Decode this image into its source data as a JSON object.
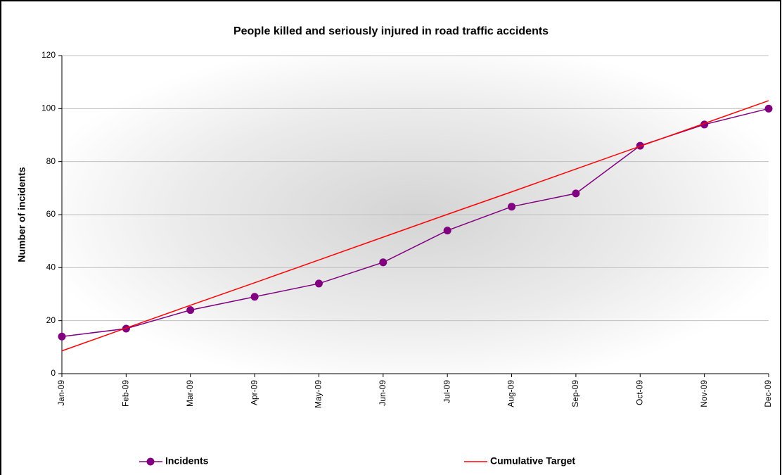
{
  "chart_data": {
    "type": "line",
    "title": "People killed and seriously injured in road traffic accidents",
    "y_label": "Number of incidents",
    "categories": [
      "Jan-09",
      "Feb-09",
      "Mar-09",
      "Apr-09",
      "May-09",
      "Jun-09",
      "Jul-09",
      "Aug-09",
      "Sep-09",
      "Oct-09",
      "Nov-09",
      "Dec-09"
    ],
    "series": [
      {
        "name": "Incidents",
        "color": "#800080",
        "marker": "circle",
        "values": [
          14,
          17,
          24,
          29,
          34,
          42,
          54,
          63,
          68,
          86,
          94,
          100
        ]
      },
      {
        "name": "Cumulative Target",
        "color": "#ff0000",
        "marker": "none",
        "values": [
          8.6,
          17.2,
          25.8,
          34.3,
          42.9,
          51.5,
          60.1,
          68.6,
          77.2,
          85.8,
          94.4,
          103
        ]
      }
    ],
    "ylim": [
      0,
      120
    ],
    "yticks": [
      0,
      20,
      40,
      60,
      80,
      100,
      120
    ],
    "grid": true,
    "legend": "bottom"
  }
}
